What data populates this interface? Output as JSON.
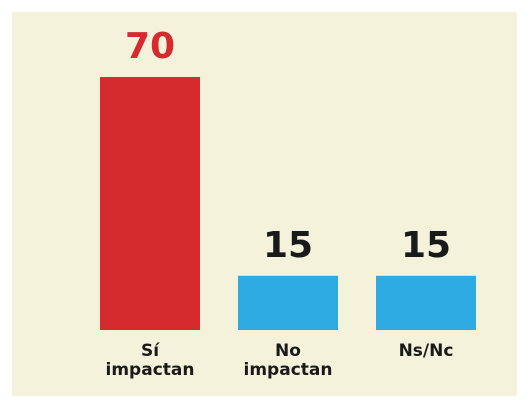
{
  "chart_data": {
    "type": "bar",
    "categories": [
      "Sí impactan",
      "No impactan",
      "Ns/Nc"
    ],
    "values": [
      70,
      15,
      15
    ],
    "colors": [
      "#d62b2e",
      "#2eabe2",
      "#2eabe2"
    ],
    "value_label_colors": [
      "#d62b2e",
      "#1a1a1a",
      "#1a1a1a"
    ]
  }
}
